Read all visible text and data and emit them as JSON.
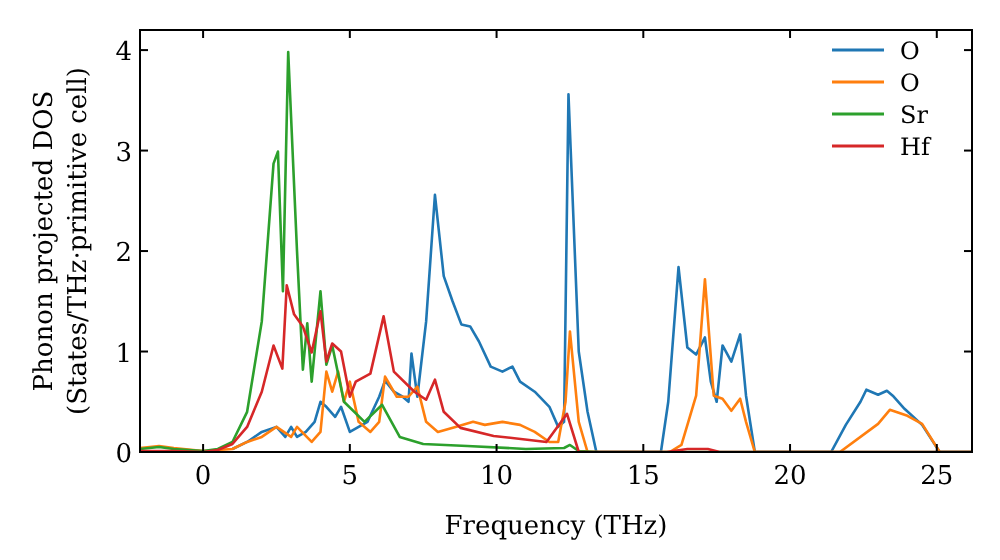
{
  "chart_data": {
    "type": "line",
    "xlabel": "Frequency (THz)",
    "ylabel": "Phonon projected DOS\n(States/THz·primitive cell)",
    "xlim": [
      -2.15,
      26.2
    ],
    "ylim": [
      0,
      4.2
    ],
    "xticks": [
      0,
      5,
      10,
      15,
      20,
      25
    ],
    "yticks": [
      0,
      1,
      2,
      3,
      4
    ],
    "grid": false,
    "legend": "top right",
    "marker": "none",
    "line_style": "solid",
    "series": [
      {
        "name": "O",
        "color": "#1f77b4",
        "x": [
          1,
          1.5,
          2,
          2.5,
          2.8,
          3,
          3.2,
          3.5,
          3.8,
          4.0,
          4.2,
          4.5,
          4.7,
          5.0,
          5.3,
          5.6,
          6.0,
          6.2,
          6.5,
          6.8,
          7.0,
          7.1,
          7.3,
          7.6,
          7.9,
          8.2,
          8.5,
          8.8,
          9.1,
          9.4,
          9.8,
          10.2,
          10.54,
          10.8,
          11.3,
          11.8,
          12.1,
          12.3,
          12.45,
          12.8,
          13.1,
          13.4,
          15.6,
          15.85,
          16.2,
          16.5,
          16.8,
          17.1,
          17.3,
          17.5,
          17.7,
          18.0,
          18.3,
          18.5,
          18.8,
          21.4,
          21.9,
          22.4,
          22.6,
          23.0,
          23.3,
          23.5,
          23.9,
          24.5,
          25.1,
          26.2
        ],
        "values": [
          0.03,
          0.1,
          0.2,
          0.25,
          0.15,
          0.25,
          0.15,
          0.2,
          0.3,
          0.5,
          0.45,
          0.35,
          0.45,
          0.2,
          0.25,
          0.3,
          0.55,
          0.71,
          0.6,
          0.55,
          0.5,
          0.98,
          0.55,
          1.3,
          2.56,
          1.75,
          1.5,
          1.27,
          1.25,
          1.1,
          0.85,
          0.8,
          0.85,
          0.7,
          0.6,
          0.45,
          0.25,
          0.3,
          3.56,
          1.0,
          0.4,
          0,
          0,
          0.5,
          1.84,
          1.04,
          0.97,
          1.14,
          0.7,
          0.5,
          1.06,
          0.9,
          1.17,
          0.56,
          0,
          0,
          0.27,
          0.5,
          0.62,
          0.57,
          0.61,
          0.56,
          0.43,
          0.27,
          0,
          0
        ]
      },
      {
        "name": "O",
        "color": "#ff7f0e",
        "x": [
          -2.15,
          -1.5,
          -1,
          0,
          1,
          1.5,
          2,
          2.5,
          3,
          3.2,
          3.7,
          4.0,
          4.2,
          4.4,
          4.6,
          4.8,
          5.0,
          5.3,
          5.7,
          6.0,
          6.2,
          6.6,
          7.0,
          7.3,
          7.6,
          8.0,
          8.6,
          9.2,
          9.6,
          10.2,
          10.8,
          11.3,
          11.8,
          12.1,
          12.35,
          12.5,
          12.8,
          13.1,
          15.9,
          16.3,
          16.8,
          17.1,
          17.4,
          17.7,
          18.0,
          18.3,
          18.5,
          18.8,
          21.7,
          23.0,
          23.4,
          24.0,
          24.5,
          25.1,
          26.2
        ],
        "values": [
          0.04,
          0.06,
          0.04,
          0.01,
          0.03,
          0.1,
          0.15,
          0.25,
          0.15,
          0.25,
          0.1,
          0.2,
          0.8,
          0.6,
          0.8,
          0.5,
          0.7,
          0.3,
          0.2,
          0.3,
          0.75,
          0.55,
          0.55,
          0.65,
          0.3,
          0.2,
          0.25,
          0.3,
          0.27,
          0.3,
          0.27,
          0.2,
          0.1,
          0.1,
          0.5,
          1.2,
          0.3,
          0,
          0,
          0.07,
          0.56,
          1.72,
          0.56,
          0.53,
          0.41,
          0.53,
          0.3,
          0,
          0,
          0.28,
          0.42,
          0.36,
          0.28,
          0,
          0
        ]
      },
      {
        "name": "Sr",
        "color": "#2ca02c",
        "x": [
          -2.15,
          -1.5,
          -1,
          0,
          0.5,
          1,
          1.5,
          2,
          2.4,
          2.55,
          2.72,
          2.9,
          3.2,
          3.4,
          3.55,
          3.7,
          4.0,
          4.2,
          4.4,
          4.8,
          5.5,
          6.1,
          6.7,
          7.5,
          9,
          11,
          12.3,
          12.5,
          12.8,
          13.5,
          26.2
        ],
        "values": [
          0.03,
          0.05,
          0.03,
          0.01,
          0.03,
          0.1,
          0.4,
          1.3,
          2.87,
          2.99,
          1.6,
          3.98,
          2.0,
          0.82,
          1.28,
          0.7,
          1.6,
          0.87,
          1.06,
          0.5,
          0.3,
          0.47,
          0.15,
          0.08,
          0.06,
          0.03,
          0.04,
          0.07,
          0.01,
          0,
          0
        ]
      },
      {
        "name": "Hf",
        "color": "#d62728",
        "x": [
          -2.15,
          -1,
          0,
          0.5,
          1,
          1.5,
          2,
          2.4,
          2.7,
          2.85,
          3.1,
          3.4,
          3.7,
          4.0,
          4.2,
          4.4,
          4.7,
          5.0,
          5.2,
          5.7,
          6.15,
          6.5,
          7.2,
          7.6,
          7.9,
          8.2,
          8.77,
          9.9,
          11.7,
          12.4,
          12.8,
          15.8,
          16.5,
          17.2,
          17.6,
          26.2
        ],
        "values": [
          0.01,
          0.01,
          0,
          0.02,
          0.08,
          0.25,
          0.6,
          1.06,
          0.83,
          1.66,
          1.37,
          1.25,
          0.99,
          1.4,
          0.9,
          1.08,
          1.0,
          0.55,
          0.7,
          0.78,
          1.35,
          0.8,
          0.6,
          0.52,
          0.72,
          0.4,
          0.24,
          0.16,
          0.1,
          0.38,
          0,
          0,
          0.03,
          0.03,
          0,
          0
        ]
      }
    ]
  }
}
